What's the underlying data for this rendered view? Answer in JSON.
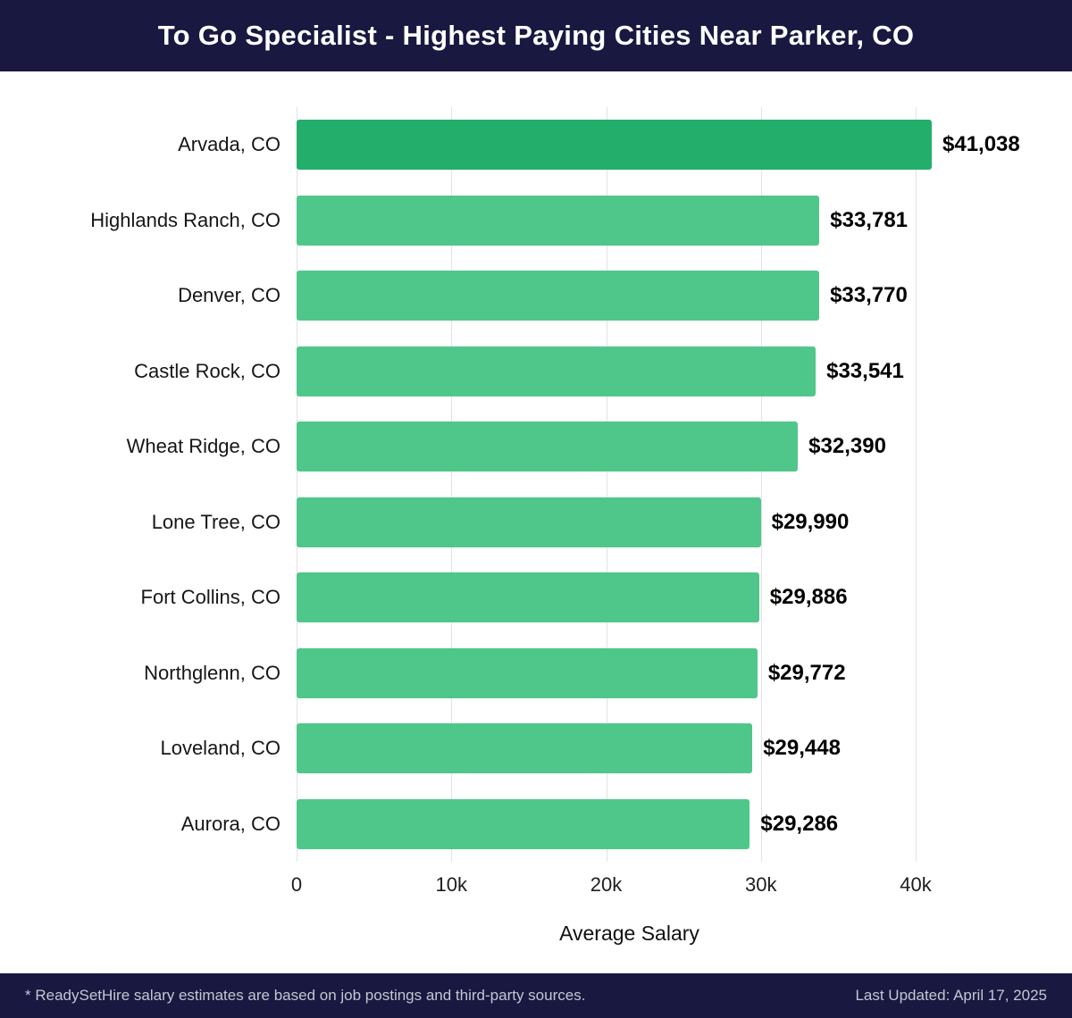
{
  "header": {
    "title": "To Go Specialist - Highest Paying Cities Near Parker, CO"
  },
  "colors": {
    "navy": "#181840",
    "bar_highlight": "#23af6b",
    "bar_default": "#50c78a",
    "grid": "#e2e2e8",
    "footer_text": "#c5c6d2"
  },
  "chart_data": {
    "type": "bar",
    "orientation": "horizontal",
    "title": "To Go Specialist - Highest Paying Cities Near Parker, CO",
    "categories": [
      "Arvada, CO",
      "Highlands Ranch, CO",
      "Denver, CO",
      "Castle Rock, CO",
      "Wheat Ridge, CO",
      "Lone Tree, CO",
      "Fort Collins, CO",
      "Northglenn, CO",
      "Loveland, CO",
      "Aurora, CO"
    ],
    "values": [
      41038,
      33781,
      33770,
      33541,
      32390,
      29990,
      29886,
      29772,
      29448,
      29286
    ],
    "value_labels": [
      "$41,038",
      "$33,781",
      "$33,770",
      "$33,541",
      "$32,390",
      "$29,990",
      "$29,886",
      "$29,772",
      "$29,448",
      "$29,286"
    ],
    "xlabel": "Average Salary",
    "x_ticks": [
      "0",
      "10k",
      "20k",
      "30k",
      "40k"
    ],
    "x_tick_values": [
      0,
      10000,
      20000,
      30000,
      40000
    ],
    "xlim": [
      0,
      43000
    ],
    "grid": "vertical",
    "legend": "none"
  },
  "footer": {
    "disclaimer": "* ReadySetHire salary estimates are based on job postings and third-party sources.",
    "last_updated": "Last Updated: April 17, 2025"
  }
}
